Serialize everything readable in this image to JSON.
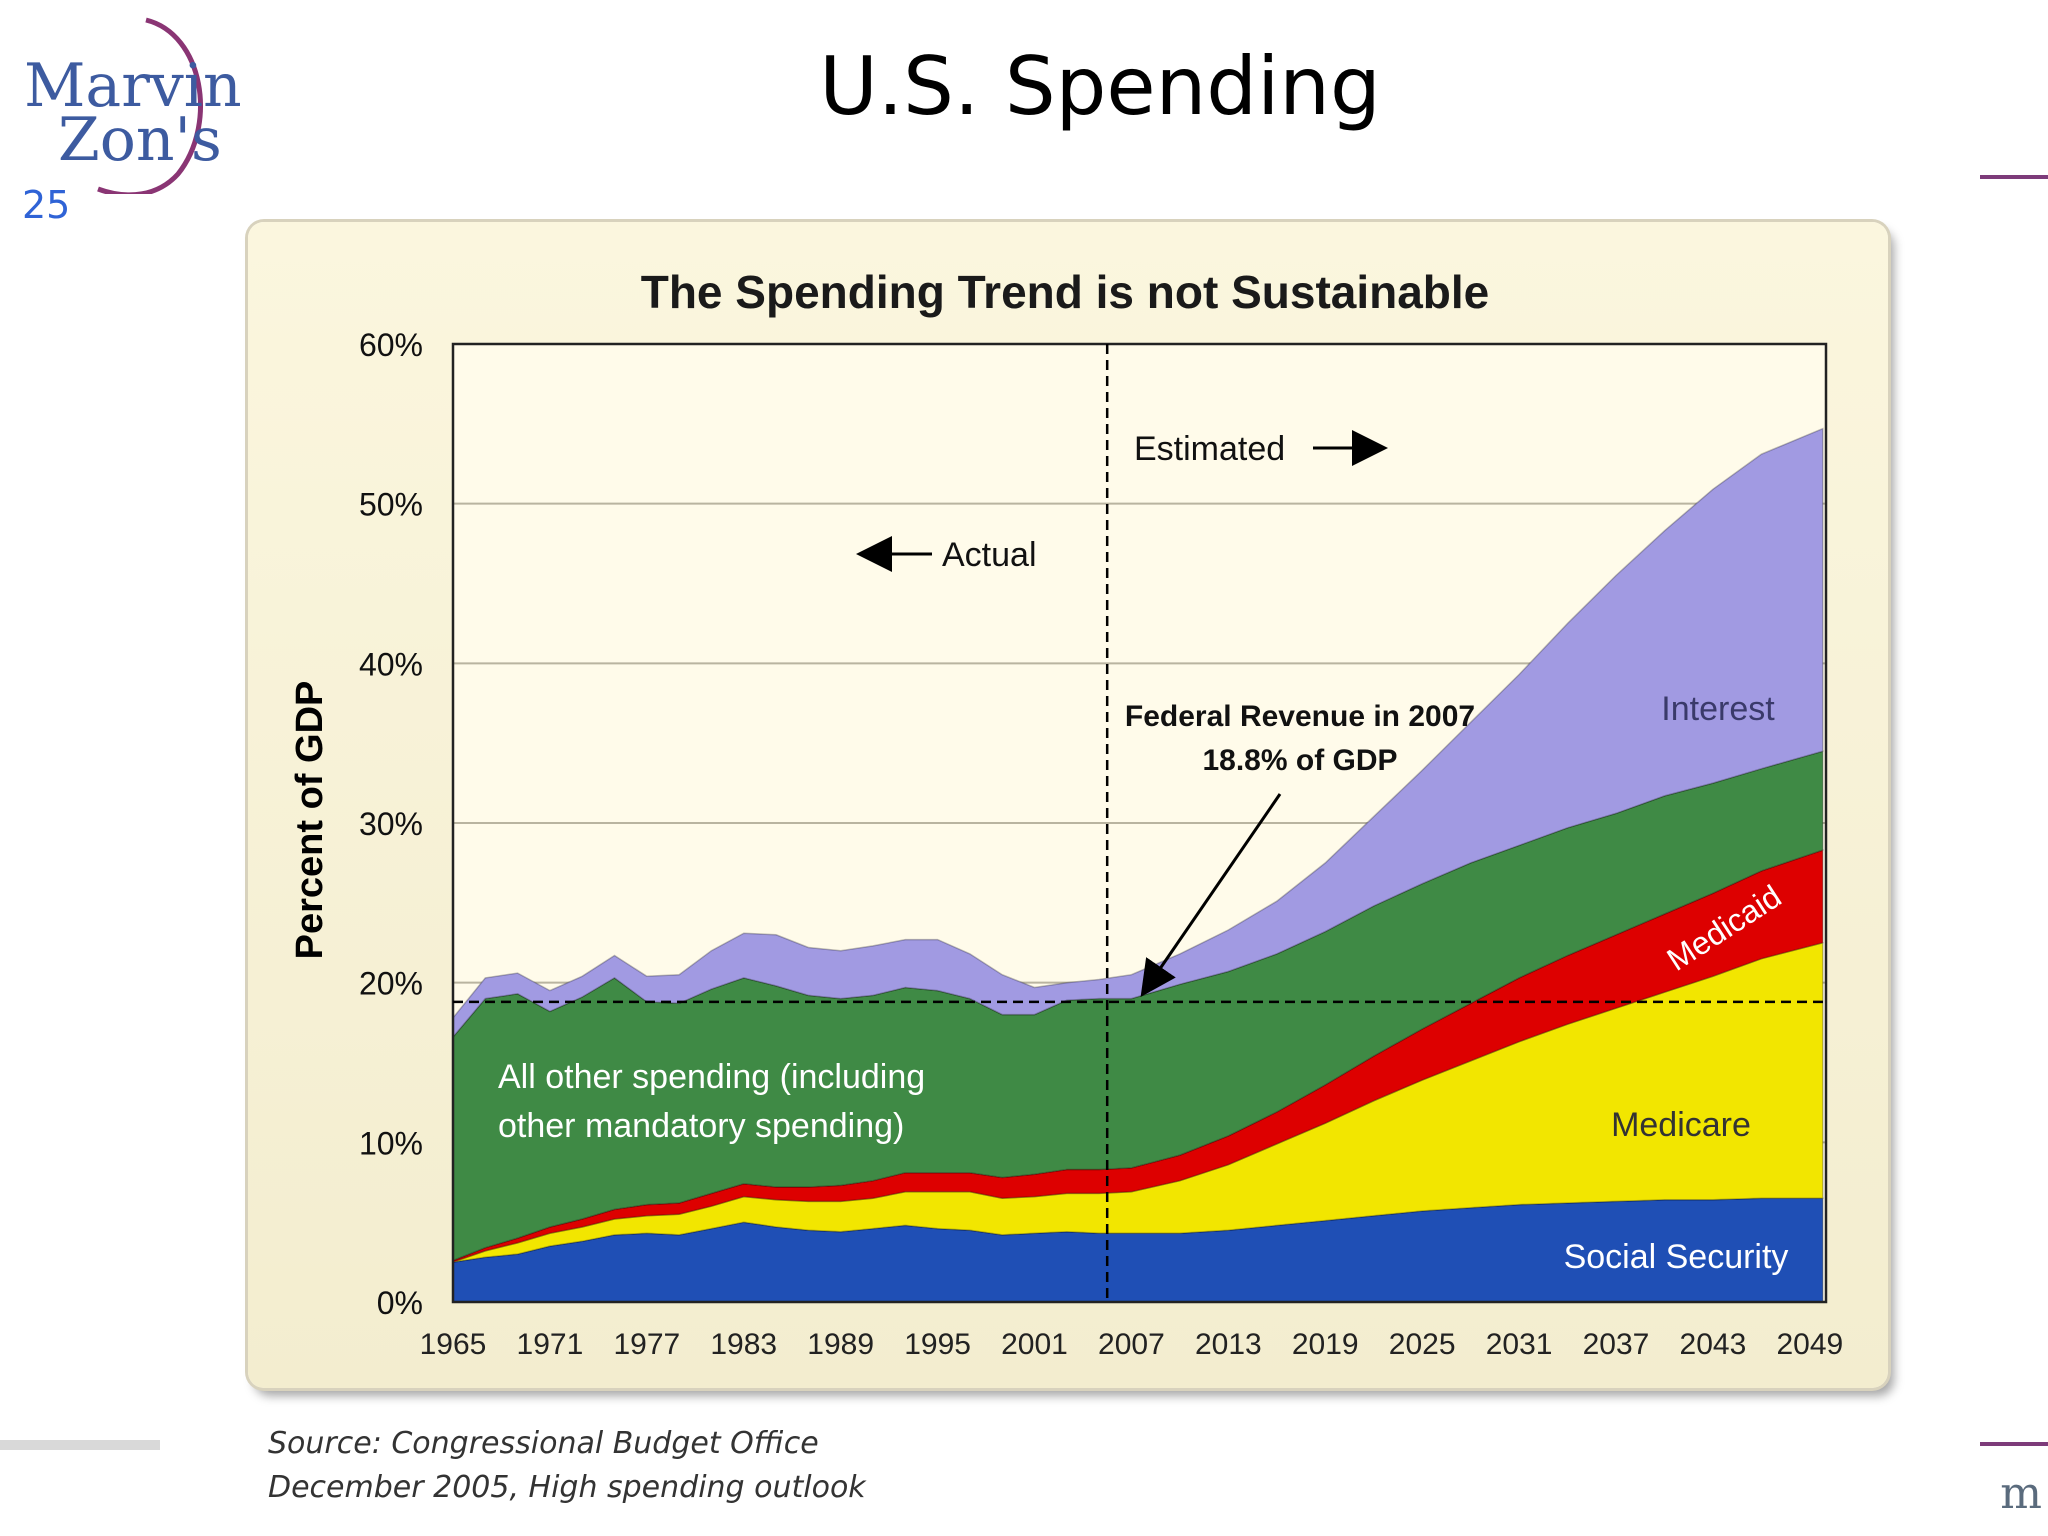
{
  "slide": {
    "logo_line1": "Marvin",
    "logo_line2": "Zon's",
    "number": "25",
    "title": "U.S. Spending",
    "edge_text": "m"
  },
  "source": {
    "line1": "Source: Congressional Budget Office",
    "line2": "December 2005, High spending outlook"
  },
  "colors": {
    "social_security": "#1f4fb5",
    "medicare": "#f2e600",
    "medicaid": "#dd0000",
    "other": "#3f8a45",
    "interest": "#a19ae2"
  },
  "chart_data": {
    "type": "area",
    "title": "The Spending Trend is not Sustainable",
    "ylabel": "Percent of GDP",
    "xlabel": "",
    "ylim": [
      0,
      60
    ],
    "xlim": [
      1965,
      2050
    ],
    "yticks": [
      "0%",
      "10%",
      "20%",
      "30%",
      "40%",
      "50%",
      "60%"
    ],
    "xticks": [
      "1965",
      "1971",
      "1977",
      "1983",
      "1989",
      "1995",
      "2001",
      "2007",
      "2013",
      "2019",
      "2025",
      "2031",
      "2037",
      "2043",
      "2049"
    ],
    "grid": true,
    "stacked": true,
    "x": [
      1965,
      1967,
      1969,
      1971,
      1973,
      1975,
      1977,
      1979,
      1981,
      1983,
      1985,
      1987,
      1989,
      1991,
      1993,
      1995,
      1997,
      1999,
      2001,
      2003,
      2005,
      2007,
      2010,
      2013,
      2016,
      2019,
      2022,
      2025,
      2028,
      2031,
      2034,
      2037,
      2040,
      2043,
      2046,
      2049.8
    ],
    "series": [
      {
        "name": "Social Security",
        "values": [
          2.5,
          2.8,
          3.0,
          3.5,
          3.8,
          4.2,
          4.3,
          4.2,
          4.6,
          5.0,
          4.7,
          4.5,
          4.4,
          4.6,
          4.8,
          4.6,
          4.5,
          4.2,
          4.3,
          4.4,
          4.3,
          4.3,
          4.3,
          4.5,
          4.8,
          5.1,
          5.4,
          5.7,
          5.9,
          6.1,
          6.2,
          6.3,
          6.4,
          6.4,
          6.5,
          6.5
        ]
      },
      {
        "name": "Medicare",
        "values": [
          0.0,
          0.4,
          0.7,
          0.8,
          0.9,
          1.0,
          1.1,
          1.3,
          1.4,
          1.6,
          1.7,
          1.8,
          1.9,
          1.9,
          2.1,
          2.3,
          2.4,
          2.3,
          2.3,
          2.4,
          2.5,
          2.6,
          3.3,
          4.1,
          5.1,
          6.1,
          7.2,
          8.2,
          9.2,
          10.2,
          11.2,
          12.1,
          13.0,
          14.0,
          15.0,
          16.0
        ]
      },
      {
        "name": "Medicaid",
        "values": [
          0.1,
          0.2,
          0.3,
          0.4,
          0.5,
          0.6,
          0.7,
          0.7,
          0.8,
          0.8,
          0.8,
          0.9,
          1.0,
          1.1,
          1.2,
          1.2,
          1.2,
          1.3,
          1.4,
          1.5,
          1.5,
          1.5,
          1.6,
          1.8,
          2.0,
          2.4,
          2.8,
          3.2,
          3.6,
          4.0,
          4.3,
          4.6,
          4.9,
          5.2,
          5.5,
          5.8
        ]
      },
      {
        "name": "All other spending",
        "values": [
          14.0,
          15.6,
          15.3,
          13.5,
          13.9,
          14.5,
          12.7,
          12.5,
          12.8,
          12.9,
          12.6,
          12.0,
          11.7,
          11.6,
          11.6,
          11.4,
          10.9,
          10.2,
          10.0,
          10.6,
          10.7,
          10.6,
          10.7,
          10.3,
          9.9,
          9.6,
          9.4,
          9.1,
          8.8,
          8.3,
          8.0,
          7.6,
          7.4,
          6.9,
          6.4,
          6.2
        ]
      },
      {
        "name": "Interest",
        "values": [
          1.2,
          1.3,
          1.3,
          1.3,
          1.3,
          1.4,
          1.6,
          1.8,
          2.4,
          2.8,
          3.2,
          3.0,
          3.0,
          3.1,
          3.0,
          3.2,
          2.8,
          2.5,
          1.7,
          1.1,
          1.2,
          1.5,
          1.9,
          2.6,
          3.3,
          4.3,
          5.6,
          7.1,
          8.8,
          10.7,
          12.8,
          14.9,
          16.6,
          18.4,
          19.7,
          20.2
        ]
      }
    ],
    "revenue_line": {
      "value": 18.8,
      "label_line1": "Federal Revenue in 2007",
      "label_line2": "18.8% of GDP"
    },
    "divider_year": 2005,
    "annotations": {
      "actual": "Actual",
      "estimated": "Estimated",
      "other_line1": "All other spending (including",
      "other_line2": "other mandatory spending)",
      "interest": "Interest",
      "medicaid": "Medicaid",
      "medicare": "Medicare",
      "social_security": "Social Security"
    }
  }
}
